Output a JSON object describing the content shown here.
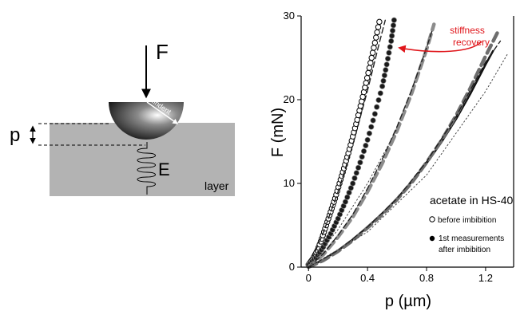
{
  "colors": {
    "layer_fill": "#b3b3b3",
    "annotation_red": "#e0161b",
    "watermark": "#b9c9e4"
  },
  "schematic": {
    "force_label": "F",
    "depth_label": "p",
    "radius_label": "Rindent",
    "modulus_label": "E",
    "layer_label": "layer"
  },
  "chart_data": {
    "type": "scatter",
    "title": "",
    "xlabel": "p (µm)",
    "ylabel": "F (mN)",
    "xlim": [
      -0.05,
      1.39
    ],
    "ylim": [
      0,
      30
    ],
    "xticks": [
      0,
      0.4,
      0.8,
      1.2
    ],
    "xtick_labels": [
      "0",
      "0.4",
      "0.8",
      "1.2"
    ],
    "yticks": [
      0,
      10,
      20,
      30
    ],
    "ytick_labels": [
      "0",
      "10",
      "20",
      "30"
    ],
    "grid": false,
    "annotation": "stiffness recovery",
    "legend": {
      "title": "acetate in HS-40",
      "placement": "bottom-right",
      "items": [
        {
          "marker": "open-circle",
          "label": "before imbibition"
        },
        {
          "marker": "filled-circle",
          "label": "1st measurements after imbibition"
        }
      ]
    },
    "series": [
      {
        "marker": "open-circle",
        "style": "markers",
        "points": [
          [
            0.0,
            0.3
          ],
          [
            0.03,
            1.0
          ],
          [
            0.06,
            2.0
          ],
          [
            0.09,
            3.4
          ],
          [
            0.12,
            5.0
          ],
          [
            0.15,
            6.6
          ],
          [
            0.18,
            8.2
          ],
          [
            0.21,
            10.0
          ],
          [
            0.24,
            11.8
          ],
          [
            0.27,
            13.6
          ],
          [
            0.3,
            15.6
          ],
          [
            0.33,
            17.6
          ],
          [
            0.36,
            19.8
          ],
          [
            0.39,
            22.0
          ],
          [
            0.42,
            24.4
          ],
          [
            0.45,
            26.8
          ],
          [
            0.48,
            29.3
          ]
        ]
      },
      {
        "marker": "open-circle",
        "style": "fit-dashed",
        "color": "#222222",
        "points": [
          [
            0.0,
            0.0
          ],
          [
            0.1,
            4.1
          ],
          [
            0.2,
            9.0
          ],
          [
            0.3,
            14.6
          ],
          [
            0.4,
            21.1
          ],
          [
            0.48,
            26.8
          ],
          [
            0.52,
            29.5
          ]
        ]
      },
      {
        "marker": "filled-circle",
        "style": "markers",
        "points": [
          [
            0.0,
            0.3
          ],
          [
            0.05,
            1.1
          ],
          [
            0.1,
            2.4
          ],
          [
            0.15,
            4.0
          ],
          [
            0.2,
            5.8
          ],
          [
            0.25,
            7.8
          ],
          [
            0.3,
            10.0
          ],
          [
            0.35,
            12.5
          ],
          [
            0.4,
            15.2
          ],
          [
            0.45,
            18.3
          ],
          [
            0.5,
            21.6
          ],
          [
            0.53,
            24.2
          ],
          [
            0.56,
            27.0
          ],
          [
            0.58,
            29.5
          ]
        ]
      },
      {
        "marker": "none",
        "style": "thick-dashed",
        "color": "#8c8c8c",
        "points": [
          [
            0.0,
            0.0
          ],
          [
            0.1,
            1.5
          ],
          [
            0.2,
            3.6
          ],
          [
            0.3,
            6.0
          ],
          [
            0.4,
            9.0
          ],
          [
            0.5,
            12.4
          ],
          [
            0.6,
            16.3
          ],
          [
            0.7,
            20.8
          ],
          [
            0.8,
            26.0
          ],
          [
            0.85,
            29.0
          ]
        ]
      },
      {
        "marker": "none",
        "style": "fit-dashed",
        "color": "#222222",
        "points": [
          [
            0.0,
            0.0
          ],
          [
            0.1,
            1.6
          ],
          [
            0.2,
            3.8
          ],
          [
            0.3,
            6.3
          ],
          [
            0.4,
            9.4
          ],
          [
            0.5,
            12.9
          ],
          [
            0.6,
            16.8
          ],
          [
            0.7,
            21.2
          ],
          [
            0.8,
            26.2
          ],
          [
            0.84,
            28.4
          ]
        ]
      },
      {
        "marker": "none",
        "style": "thin-dotted",
        "color": "#444444",
        "points": [
          [
            0.0,
            0.0
          ],
          [
            0.2,
            4.5
          ],
          [
            0.4,
            10.0
          ],
          [
            0.6,
            16.5
          ]
        ]
      },
      {
        "marker": "none",
        "style": "solid",
        "color": "#111111",
        "points": [
          [
            0.0,
            0.0
          ],
          [
            0.1,
            0.9
          ],
          [
            0.2,
            2.0
          ],
          [
            0.3,
            3.3
          ],
          [
            0.4,
            4.8
          ],
          [
            0.5,
            6.4
          ],
          [
            0.6,
            8.2
          ],
          [
            0.7,
            10.2
          ],
          [
            0.8,
            12.4
          ],
          [
            0.9,
            14.9
          ],
          [
            1.0,
            17.7
          ],
          [
            1.1,
            20.8
          ],
          [
            1.2,
            24.2
          ],
          [
            1.25,
            25.8
          ]
        ]
      },
      {
        "marker": "none",
        "style": "thick-dashed",
        "color": "#6e6e6e",
        "points": [
          [
            0.0,
            0.0
          ],
          [
            0.1,
            0.8
          ],
          [
            0.2,
            1.9
          ],
          [
            0.3,
            3.2
          ],
          [
            0.4,
            4.7
          ],
          [
            0.5,
            6.3
          ],
          [
            0.6,
            8.1
          ],
          [
            0.7,
            10.1
          ],
          [
            0.8,
            12.5
          ],
          [
            0.9,
            15.1
          ],
          [
            1.0,
            18.1
          ],
          [
            1.1,
            21.5
          ],
          [
            1.2,
            25.2
          ],
          [
            1.28,
            28.0
          ]
        ]
      },
      {
        "marker": "none",
        "style": "fit-dashed",
        "color": "#222222",
        "points": [
          [
            0.0,
            0.0
          ],
          [
            0.2,
            2.0
          ],
          [
            0.4,
            4.8
          ],
          [
            0.6,
            8.2
          ],
          [
            0.8,
            12.6
          ],
          [
            1.0,
            18.0
          ],
          [
            1.2,
            24.5
          ],
          [
            1.3,
            27.0
          ]
        ]
      },
      {
        "marker": "none",
        "style": "thin-dotted",
        "color": "#444444",
        "points": [
          [
            0.0,
            0.0
          ],
          [
            0.4,
            4.2
          ],
          [
            0.8,
            11.0
          ],
          [
            1.2,
            21.0
          ],
          [
            1.35,
            25.5
          ]
        ]
      }
    ]
  }
}
